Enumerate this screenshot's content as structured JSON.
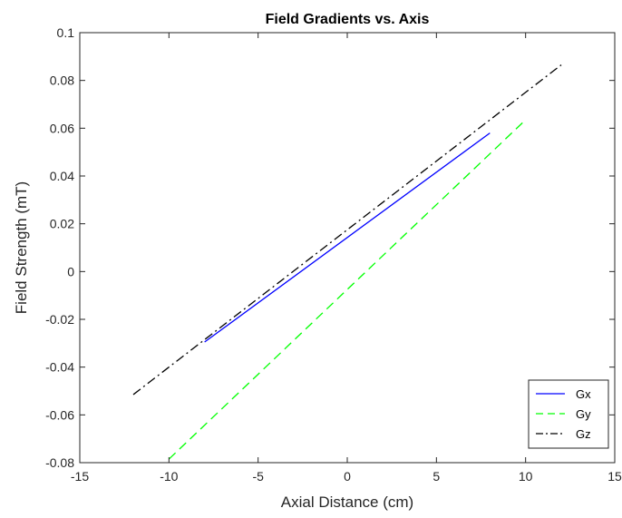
{
  "chart_data": {
    "type": "line",
    "title": "Field Gradients vs. Axis",
    "xlabel": "Axial Distance (cm)",
    "ylabel": "Field Strength (mT)",
    "xlim": [
      -15,
      15
    ],
    "ylim": [
      -0.08,
      0.1
    ],
    "xticks": [
      -15,
      -10,
      -5,
      0,
      5,
      10,
      15
    ],
    "xtick_labels": [
      "-15",
      "-10",
      "-5",
      "0",
      "5",
      "10",
      "15"
    ],
    "yticks": [
      -0.08,
      -0.06,
      -0.04,
      -0.02,
      0,
      0.02,
      0.04,
      0.06,
      0.08,
      0.1
    ],
    "ytick_labels": [
      "-0.08",
      "-0.06",
      "-0.04",
      "-0.02",
      "0",
      "0.02",
      "0.04",
      "0.06",
      "0.08",
      "0.1"
    ],
    "grid": false,
    "legend_position": "bottom-right",
    "series": [
      {
        "name": "Gx",
        "color": "#0000ff",
        "style": "solid",
        "x": [
          -8,
          8
        ],
        "y": [
          -0.0295,
          0.058
        ]
      },
      {
        "name": "Gy",
        "color": "#00ff00",
        "style": "dashed",
        "x": [
          -10,
          10
        ],
        "y": [
          -0.0785,
          0.0635
        ]
      },
      {
        "name": "Gz",
        "color": "#000000",
        "style": "dashdot",
        "x": [
          -12,
          12
        ],
        "y": [
          -0.0515,
          0.0865
        ]
      }
    ]
  }
}
